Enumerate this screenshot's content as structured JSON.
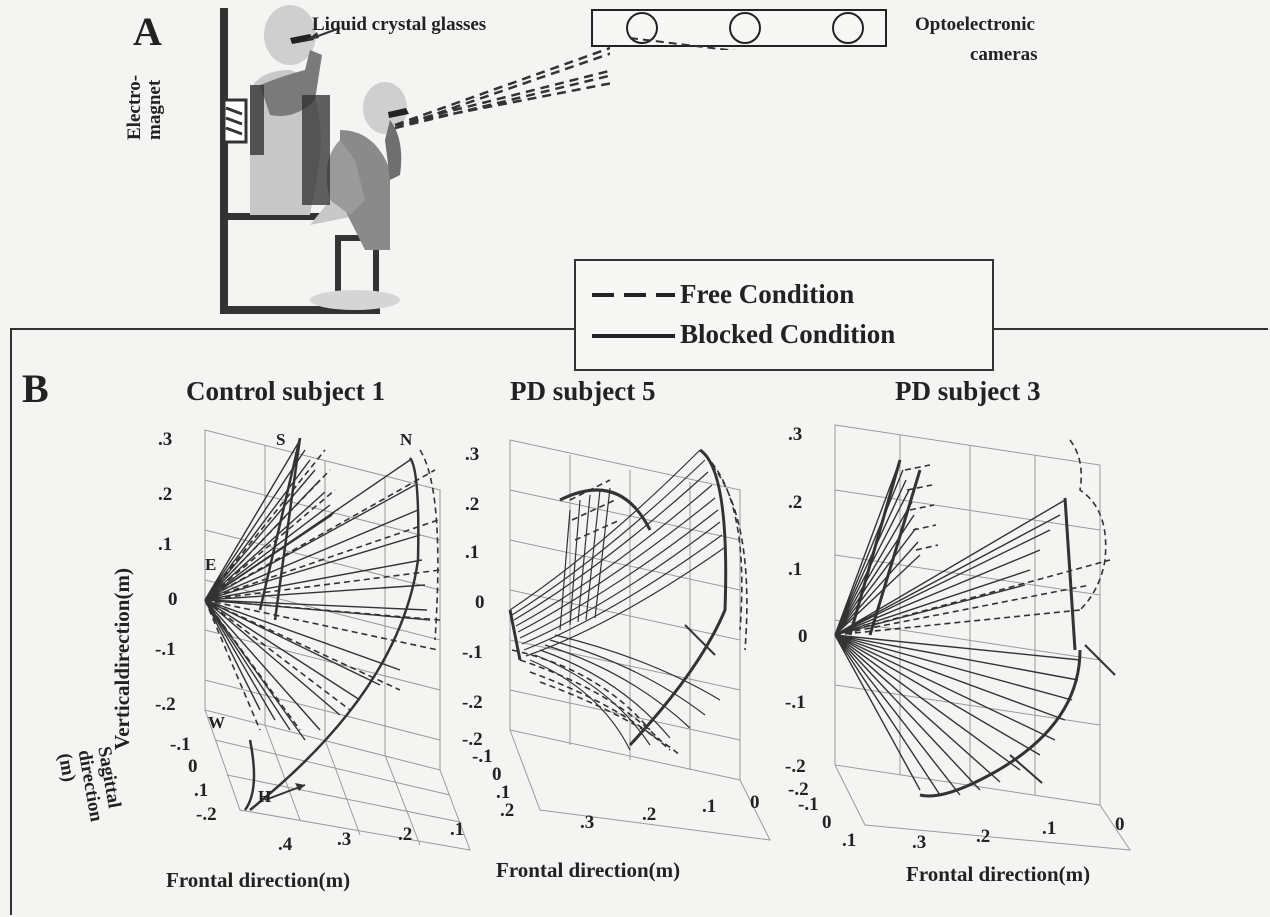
{
  "panelA": {
    "letter": "A",
    "glasses_label": "Liquid crystal glasses",
    "cameras_label_1": "Optoelectronic",
    "cameras_label_2": "cameras",
    "magnet_label_1": "Electro-",
    "magnet_label_2": "magnet"
  },
  "legend": {
    "free": "Free Condition",
    "blocked": "Blocked Condition"
  },
  "panelB": {
    "letter": "B",
    "plots": [
      {
        "title": "Control subject 1",
        "xlabel": "Frontal direction(m)",
        "ylabel": "Verticaldirection(m)",
        "zlabel_1": "Sagittal",
        "zlabel_2": "direction",
        "zlabel_3": "(m)",
        "yticks": [
          ".3",
          ".2",
          ".1",
          "0",
          "-.1",
          "-.2"
        ],
        "zticks": [
          "-.1",
          "0",
          ".1",
          "-.2"
        ],
        "xticks": [
          ".4",
          ".3",
          ".2",
          ".1"
        ],
        "markers": [
          "S",
          "N",
          "E",
          "W",
          "H"
        ]
      },
      {
        "title": "PD subject 5",
        "xlabel": "Frontal direction(m)",
        "yticks": [
          ".3",
          ".2",
          ".1",
          "0",
          "-.1",
          "-.2"
        ],
        "zticks": [
          "-.2",
          "-.1",
          "0",
          ".1",
          ".2"
        ],
        "xticks": [
          ".3",
          ".2",
          ".1",
          "0"
        ]
      },
      {
        "title": "PD subject 3",
        "xlabel": "Frontal direction(m)",
        "yticks": [
          ".3",
          ".2",
          ".1",
          "0",
          "-.1",
          "-.2"
        ],
        "zticks": [
          "-.2",
          "-.1",
          "0",
          ".1"
        ],
        "xticks": [
          ".3",
          ".2",
          ".1",
          "0"
        ]
      }
    ]
  }
}
